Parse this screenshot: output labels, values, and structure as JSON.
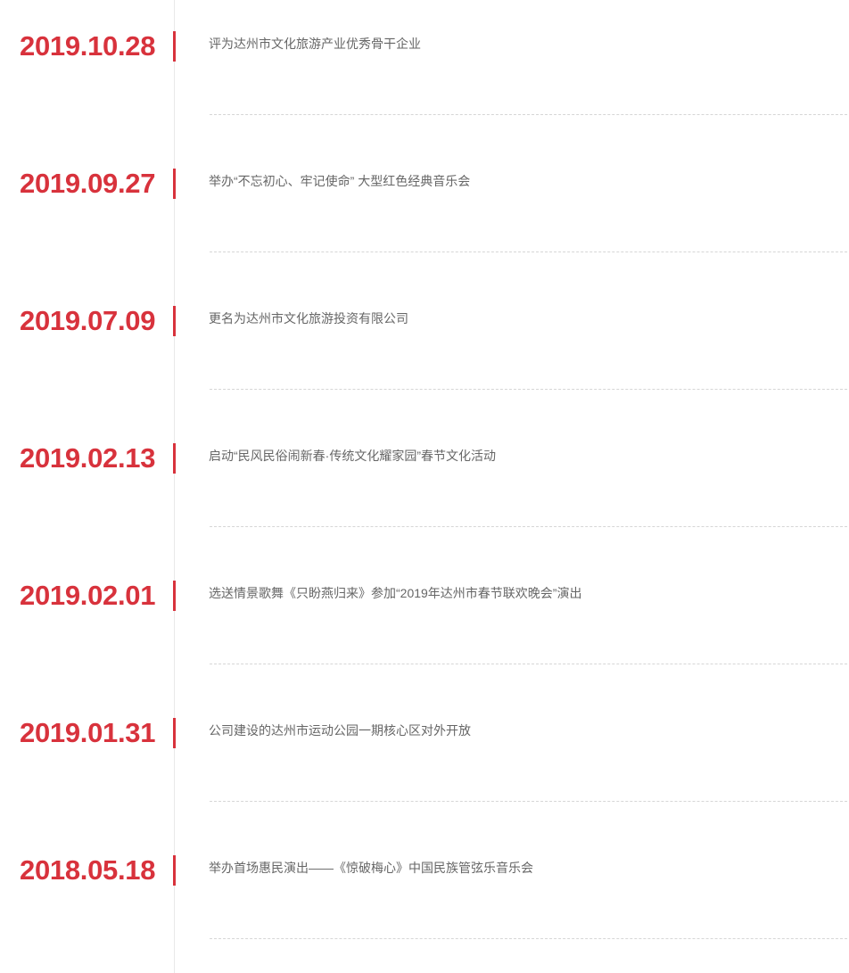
{
  "accent_color": "#d8323c",
  "timeline": [
    {
      "date": "2019.10.28",
      "text": "评为达州市文化旅游产业优秀骨干企业"
    },
    {
      "date": "2019.09.27",
      "text": "举办“不忘初心、牢记使命” 大型红色经典音乐会"
    },
    {
      "date": "2019.07.09",
      "text": "更名为达州市文化旅游投资有限公司"
    },
    {
      "date": "2019.02.13",
      "text": "启动“民风民俗闹新春·传统文化耀家园”春节文化活动"
    },
    {
      "date": "2019.02.01",
      "text": "选送情景歌舞《只盼燕归来》参加“2019年达州市春节联欢晚会”演出"
    },
    {
      "date": "2019.01.31",
      "text": "公司建设的达州市运动公园一期核心区对外开放"
    },
    {
      "date": "2018.05.18",
      "text": "举办首场惠民演出——《惊破梅心》中国民族管弦乐音乐会"
    }
  ]
}
